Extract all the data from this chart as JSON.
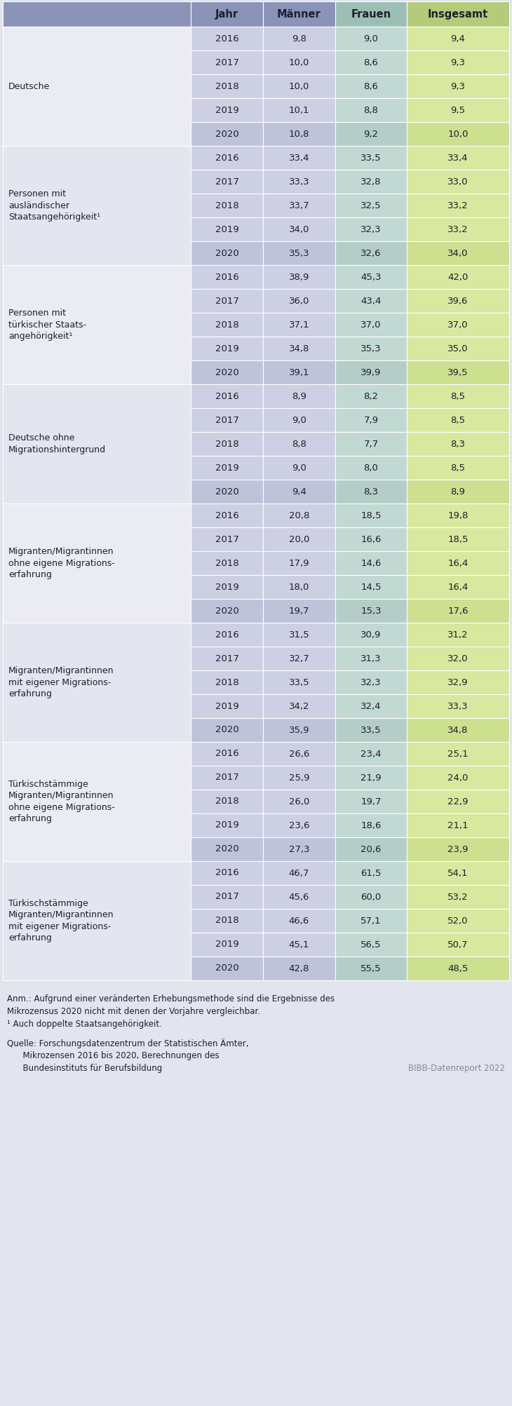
{
  "header": [
    "Jahr",
    "Männer",
    "Frauen",
    "Insgesamt"
  ],
  "groups": [
    {
      "label_lines": [
        "Deutsche"
      ],
      "rows": [
        [
          "2016",
          "9,8",
          "9,0",
          "9,4"
        ],
        [
          "2017",
          "10,0",
          "8,6",
          "9,3"
        ],
        [
          "2018",
          "10,0",
          "8,6",
          "9,3"
        ],
        [
          "2019",
          "10,1",
          "8,8",
          "9,5"
        ],
        [
          "2020",
          "10,8",
          "9,2",
          "10,0"
        ]
      ]
    },
    {
      "label_lines": [
        "Personen mit",
        "ausländischer",
        "Staatsangehörigkeit¹"
      ],
      "rows": [
        [
          "2016",
          "33,4",
          "33,5",
          "33,4"
        ],
        [
          "2017",
          "33,3",
          "32,8",
          "33,0"
        ],
        [
          "2018",
          "33,7",
          "32,5",
          "33,2"
        ],
        [
          "2019",
          "34,0",
          "32,3",
          "33,2"
        ],
        [
          "2020",
          "35,3",
          "32,6",
          "34,0"
        ]
      ]
    },
    {
      "label_lines": [
        "Personen mit",
        "türkischer Staats-",
        "angehörigkeit¹"
      ],
      "rows": [
        [
          "2016",
          "38,9",
          "45,3",
          "42,0"
        ],
        [
          "2017",
          "36,0",
          "43,4",
          "39,6"
        ],
        [
          "2018",
          "37,1",
          "37,0",
          "37,0"
        ],
        [
          "2019",
          "34,8",
          "35,3",
          "35,0"
        ],
        [
          "2020",
          "39,1",
          "39,9",
          "39,5"
        ]
      ]
    },
    {
      "label_lines": [
        "Deutsche ohne",
        "Migrationshintergrund"
      ],
      "rows": [
        [
          "2016",
          "8,9",
          "8,2",
          "8,5"
        ],
        [
          "2017",
          "9,0",
          "7,9",
          "8,5"
        ],
        [
          "2018",
          "8,8",
          "7,7",
          "8,3"
        ],
        [
          "2019",
          "9,0",
          "8,0",
          "8,5"
        ],
        [
          "2020",
          "9,4",
          "8,3",
          "8,9"
        ]
      ]
    },
    {
      "label_lines": [
        "Migranten/Migrantinnen",
        "ohne eigene Migrations-",
        "erfahrung"
      ],
      "rows": [
        [
          "2016",
          "20,8",
          "18,5",
          "19,8"
        ],
        [
          "2017",
          "20,0",
          "16,6",
          "18,5"
        ],
        [
          "2018",
          "17,9",
          "14,6",
          "16,4"
        ],
        [
          "2019",
          "18,0",
          "14,5",
          "16,4"
        ],
        [
          "2020",
          "19,7",
          "15,3",
          "17,6"
        ]
      ]
    },
    {
      "label_lines": [
        "Migranten/Migrantinnen",
        "mit eigener Migrations-",
        "erfahrung"
      ],
      "rows": [
        [
          "2016",
          "31,5",
          "30,9",
          "31,2"
        ],
        [
          "2017",
          "32,7",
          "31,3",
          "32,0"
        ],
        [
          "2018",
          "33,5",
          "32,3",
          "32,9"
        ],
        [
          "2019",
          "34,2",
          "32,4",
          "33,3"
        ],
        [
          "2020",
          "35,9",
          "33,5",
          "34,8"
        ]
      ]
    },
    {
      "label_lines": [
        "Türkischstämmige",
        "Migranten/Migrantinnen",
        "ohne eigene Migrations-",
        "erfahrung"
      ],
      "rows": [
        [
          "2016",
          "26,6",
          "23,4",
          "25,1"
        ],
        [
          "2017",
          "25,9",
          "21,9",
          "24,0"
        ],
        [
          "2018",
          "26,0",
          "19,7",
          "22,9"
        ],
        [
          "2019",
          "23,6",
          "18,6",
          "21,1"
        ],
        [
          "2020",
          "27,3",
          "20,6",
          "23,9"
        ]
      ]
    },
    {
      "label_lines": [
        "Türkischstämmige",
        "Migranten/Migrantinnen",
        "mit eigener Migrations-",
        "erfahrung"
      ],
      "rows": [
        [
          "2016",
          "46,7",
          "61,5",
          "54,1"
        ],
        [
          "2017",
          "45,6",
          "60,0",
          "53,2"
        ],
        [
          "2018",
          "46,6",
          "57,1",
          "52,0"
        ],
        [
          "2019",
          "45,1",
          "56,5",
          "50,7"
        ],
        [
          "2020",
          "42,8",
          "55,5",
          "48,5"
        ]
      ]
    }
  ],
  "footnote1": "Anm.: Aufgrund einer veränderten Erhebungsmethode sind die Ergebnisse des",
  "footnote2": "Mikrozensus 2020 nicht mit denen der Vorjahre vergleichbar.",
  "footnote3": "¹ Auch doppelte Staatsangehörigkeit.",
  "source1": "Quelle: Forschungsdatenzentrum der Statistischen Ämter,",
  "source2": "      Mikrozensen 2016 bis 2020, Berechnungen des",
  "source3": "      Bundesinstituts für Berufsbildung",
  "source4": "BIBB-Datenreport 2022",
  "header_left_color": "#8b93b8",
  "header_jahr_color": "#8b93b8",
  "header_maenner_color": "#8b93b8",
  "header_frauen_color": "#9bbfb5",
  "header_insgesamt_color": "#b5cb7a",
  "col_jahr_light": "#cdd0e3",
  "col_jahr_dark": "#bfc3da",
  "col_maenner_light": "#cdd0e3",
  "col_maenner_dark": "#bfc3da",
  "col_frauen_light": "#c2d8d2",
  "col_frauen_dark": "#b4cdc7",
  "col_insgesamt_light": "#d8e89e",
  "col_insgesamt_dark": "#cce090",
  "label_bg_even": "#eaebf3",
  "label_bg_odd": "#e3e5ef",
  "fig_bg": "#e2e4ee",
  "text_dark": "#1e1e2e",
  "text_gray": "#888899"
}
